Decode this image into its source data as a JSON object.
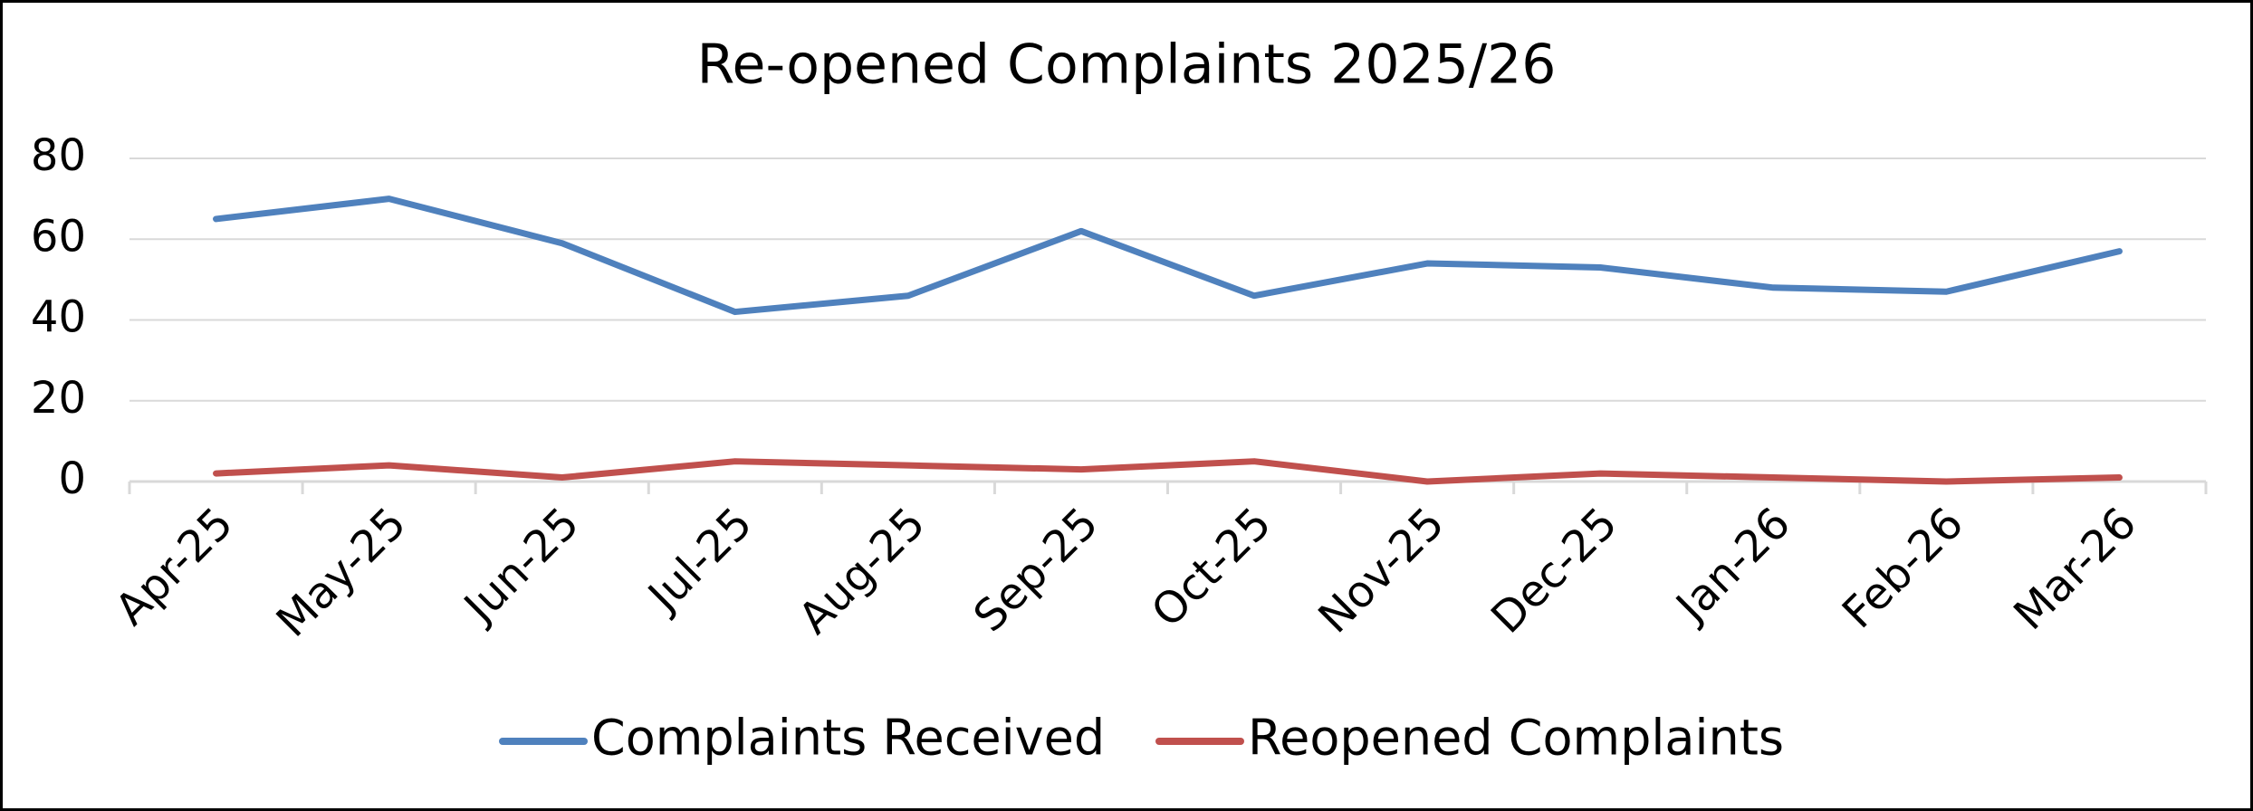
{
  "chart_data": {
    "type": "line",
    "title": "Re-opened Complaints 2025/26",
    "categories": [
      "Apr-25",
      "May-25",
      "Jun-25",
      "Jul-25",
      "Aug-25",
      "Sep-25",
      "Oct-25",
      "Nov-25",
      "Dec-25",
      "Jan-26",
      "Feb-26",
      "Mar-26"
    ],
    "series": [
      {
        "name": "Complaints Received",
        "color": "#4f81bd",
        "values": [
          65,
          70,
          59,
          42,
          46,
          62,
          46,
          54,
          53,
          48,
          47,
          57
        ]
      },
      {
        "name": "Reopened Complaints",
        "color": "#c0504d",
        "values": [
          2,
          4,
          1,
          5,
          4,
          3,
          5,
          0,
          2,
          1,
          0,
          1
        ]
      }
    ],
    "ylim": [
      0,
      80
    ],
    "yticks": [
      0,
      20,
      40,
      60,
      80
    ],
    "grid": true,
    "legend": "bottom"
  }
}
